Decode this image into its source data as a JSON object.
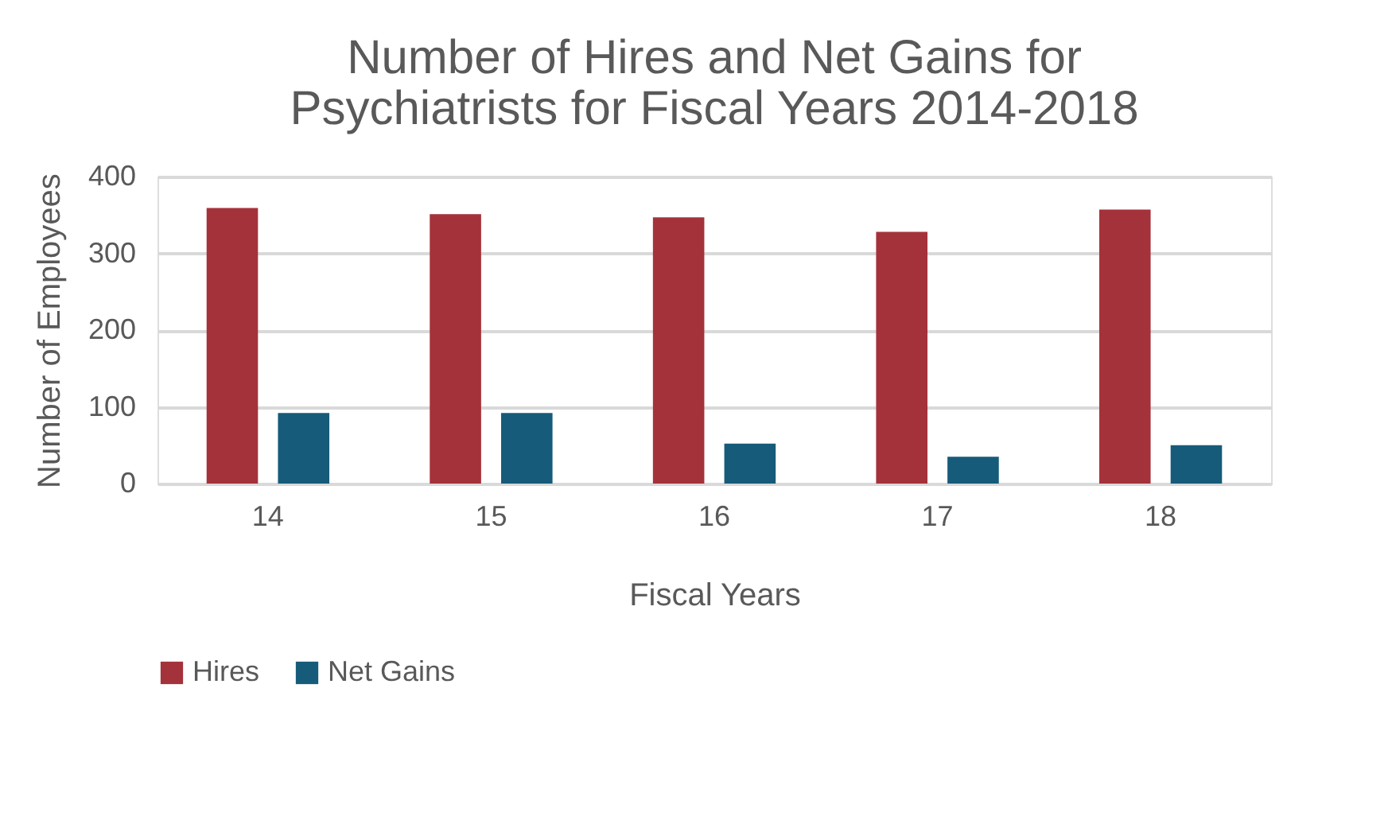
{
  "chart_data": {
    "type": "bar",
    "title": "Number of Hires and Net Gains for Psychiatrists for Fiscal Years 2014-2018",
    "xlabel": "Fiscal Years",
    "ylabel": "Number of Employees",
    "categories": [
      "14",
      "15",
      "16",
      "17",
      "18"
    ],
    "series": [
      {
        "name": "Hires",
        "color": "#a4323a",
        "values": [
          359,
          351,
          347,
          328,
          357
        ]
      },
      {
        "name": "Net Gains",
        "color": "#165b7a",
        "values": [
          92,
          92,
          52,
          35,
          50
        ]
      }
    ],
    "ylim": [
      0,
      400
    ],
    "yticks": [
      0,
      100,
      200,
      300,
      400
    ],
    "grid": "y",
    "legend": "bottom"
  }
}
